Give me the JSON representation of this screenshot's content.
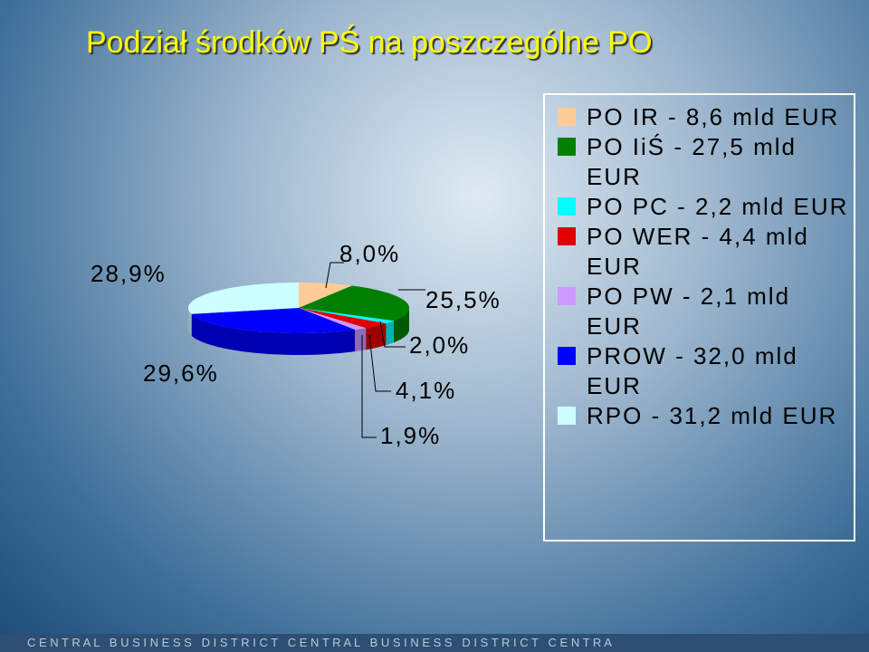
{
  "chart_data": {
    "type": "pie",
    "title": "Podział środków PŚ na poszczególne PO",
    "categories": [
      "PO IR - 8,6 mld EUR",
      "PO IiŚ - 27,5 mld EUR",
      "PO PC - 2,2 mld EUR",
      "PO WER - 4,4 mld EUR",
      "PO PW - 2,1 mld EUR",
      "PROW - 32,0 mld EUR",
      "RPO - 31,2 mld EUR"
    ],
    "values": [
      8.0,
      25.5,
      2.0,
      4.1,
      1.9,
      29.6,
      28.9
    ],
    "value_labels": [
      "8,0%",
      "25,5%",
      "2,0%",
      "4,1%",
      "1,9%",
      "29,6%",
      "28,9%"
    ],
    "colors": [
      "#ffcc99",
      "#008000",
      "#00ffff",
      "#e00000",
      "#cc99ff",
      "#0000ff",
      "#ccffff"
    ],
    "legend": "right"
  },
  "footer": "C E N T R A L   B U S I N E S S   D I S T R I C T   C E N T R A L   B U S I N E S S   D I S T R I C T   C E N T R A"
}
